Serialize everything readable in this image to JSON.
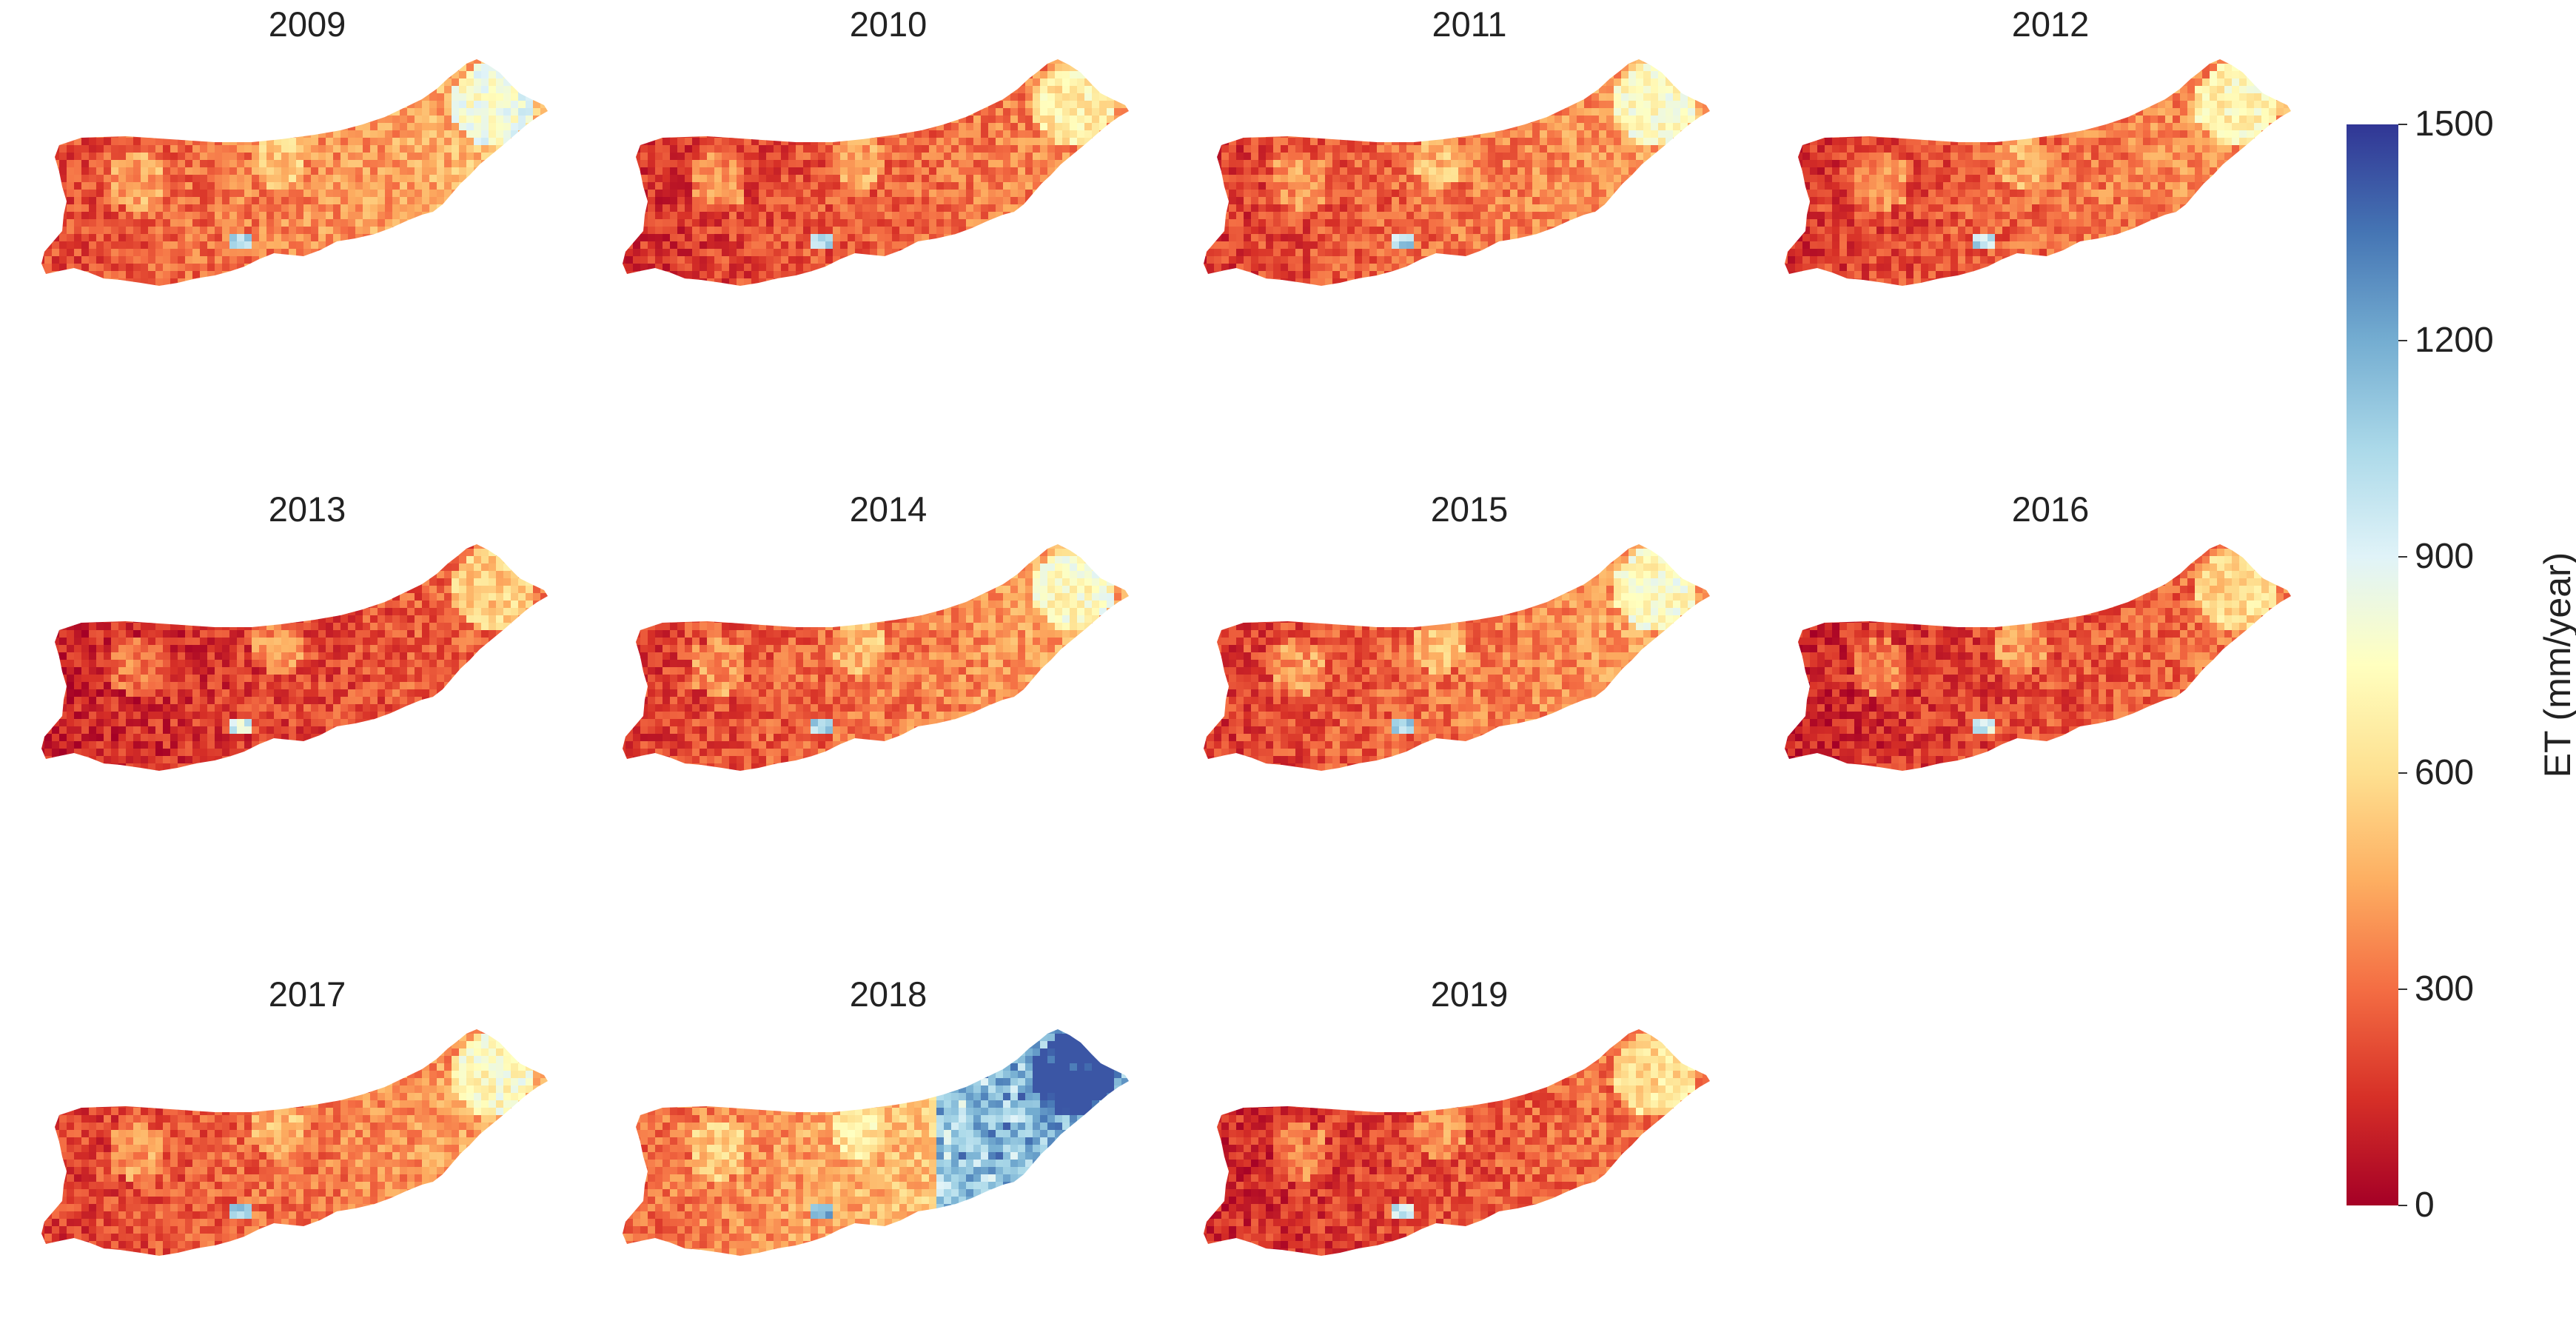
{
  "chart_data": {
    "type": "heatmap",
    "panels": [
      {
        "title": "2009",
        "tone": 0.4
      },
      {
        "title": "2010",
        "tone": 0.32
      },
      {
        "title": "2011",
        "tone": 0.36
      },
      {
        "title": "2012",
        "tone": 0.34
      },
      {
        "title": "2013",
        "tone": 0.26
      },
      {
        "title": "2014",
        "tone": 0.36
      },
      {
        "title": "2015",
        "tone": 0.36
      },
      {
        "title": "2016",
        "tone": 0.28
      },
      {
        "title": "2017",
        "tone": 0.36
      },
      {
        "title": "2018",
        "tone": 0.5
      },
      {
        "title": "2019",
        "tone": 0.29
      }
    ],
    "colorbar": {
      "label": "ET (mm/year)",
      "range": [
        0,
        1500
      ],
      "ticks": [
        {
          "value": 0,
          "label": "0"
        },
        {
          "value": 300,
          "label": "300"
        },
        {
          "value": 600,
          "label": "600"
        },
        {
          "value": 900,
          "label": "900"
        },
        {
          "value": 1200,
          "label": "1200"
        },
        {
          "value": 1500,
          "label": "1500"
        }
      ],
      "colormap": [
        "#a50026",
        "#d73027",
        "#f46d43",
        "#fdae61",
        "#fee090",
        "#ffffbf",
        "#e0f3f8",
        "#abd9e9",
        "#74add1",
        "#4575b4",
        "#313695"
      ]
    }
  }
}
